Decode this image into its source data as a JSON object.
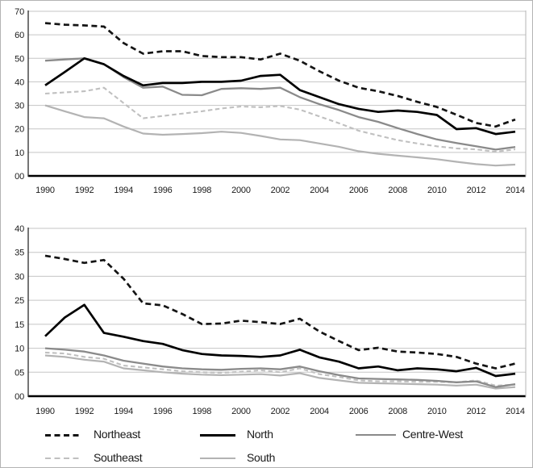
{
  "legend": {
    "entries": [
      {
        "id": "northeast",
        "label": "Northeast",
        "color": "#141414",
        "dashed": true,
        "thickness": 3,
        "row": 0,
        "col": 0
      },
      {
        "id": "north",
        "label": "North",
        "color": "#000000",
        "dashed": false,
        "thickness": 3,
        "row": 0,
        "col": 1
      },
      {
        "id": "centre-west",
        "label": "Centre-West",
        "color": "#8a8a8a",
        "dashed": false,
        "thickness": 2.5,
        "row": 0,
        "col": 2
      },
      {
        "id": "southeast",
        "label": "Southeast",
        "color": "#c0c0c0",
        "dashed": true,
        "thickness": 2.5,
        "row": 1,
        "col": 0
      },
      {
        "id": "south",
        "label": "South",
        "color": "#b3b3b3",
        "dashed": false,
        "thickness": 2.5,
        "row": 1,
        "col": 1
      }
    ]
  },
  "chart_data": [
    {
      "type": "line",
      "title": "",
      "xlabel": "",
      "ylabel": "",
      "x": [
        1990,
        1991,
        1992,
        1993,
        1994,
        1995,
        1996,
        1997,
        1998,
        1999,
        2000,
        2001,
        2002,
        2003,
        2004,
        2005,
        2006,
        2007,
        2008,
        2009,
        2010,
        2011,
        2012,
        2013,
        2014
      ],
      "xtick_labels": [
        "1990",
        "1992",
        "1994",
        "1996",
        "1998",
        "2000",
        "2002",
        "2004",
        "2006",
        "2008",
        "2010",
        "2012",
        "2014"
      ],
      "ytick_labels": [
        "00",
        "10",
        "20",
        "30",
        "40",
        "50",
        "60",
        "70"
      ],
      "ytick_values": [
        0,
        10,
        20,
        30,
        40,
        50,
        60,
        70
      ],
      "ylim": [
        0,
        70
      ],
      "grid": true,
      "series": [
        {
          "name": "Northeast",
          "color": "#141414",
          "dash": "7 4.5",
          "width": 2.7,
          "values": [
            65,
            64.3,
            64,
            63.5,
            56.5,
            52,
            53,
            53,
            51,
            50.5,
            50.5,
            49.5,
            52,
            49,
            44.5,
            40.5,
            37.5,
            36,
            34,
            31.5,
            29.3,
            26,
            22.5,
            21,
            24
          ]
        },
        {
          "name": "North",
          "color": "#000000",
          "dash": "",
          "width": 2.7,
          "values": [
            38.5,
            44.2,
            50,
            47.5,
            42.5,
            38.5,
            39.5,
            39.5,
            40,
            40,
            40.5,
            42.5,
            43,
            36.5,
            33.5,
            30.5,
            28.5,
            27.2,
            27.8,
            27.2,
            25.9,
            19.9,
            20.3,
            17.8,
            18.8
          ]
        },
        {
          "name": "Centre-West",
          "color": "#8a8a8a",
          "dash": "",
          "width": 2.3,
          "values": [
            49,
            49.5,
            50,
            47.5,
            42,
            37.5,
            38,
            34.5,
            34.3,
            37,
            37.3,
            37,
            37.5,
            33.5,
            30.5,
            28,
            25,
            23,
            20.3,
            17.8,
            15.5,
            14,
            12.6,
            11.2,
            12.3
          ]
        },
        {
          "name": "Southeast",
          "color": "#c0c0c0",
          "dash": "5.5 3.5",
          "width": 2.1,
          "values": [
            35,
            35.5,
            36,
            37.5,
            31,
            24.5,
            25.5,
            26.5,
            27.5,
            28.7,
            29.5,
            29.2,
            29.7,
            28.2,
            25.3,
            22.4,
            19.2,
            17.2,
            15.2,
            13.8,
            12.6,
            11.7,
            11.3,
            10.3,
            11.3
          ]
        },
        {
          "name": "South",
          "color": "#b3b3b3",
          "dash": "",
          "width": 2.2,
          "values": [
            30,
            27.5,
            25,
            24.5,
            21,
            18,
            17.5,
            17.8,
            18.2,
            18.8,
            18.3,
            17,
            15.5,
            15.2,
            13.8,
            12.4,
            10.5,
            9.4,
            8.6,
            7.9,
            7.1,
            6,
            5,
            4.4,
            4.8
          ]
        }
      ]
    },
    {
      "type": "line",
      "title": "",
      "xlabel": "",
      "ylabel": "",
      "x": [
        1990,
        1991,
        1992,
        1993,
        1994,
        1995,
        1996,
        1997,
        1998,
        1999,
        2000,
        2001,
        2002,
        2003,
        2004,
        2005,
        2006,
        2007,
        2008,
        2009,
        2010,
        2011,
        2012,
        2013,
        2014
      ],
      "xtick_labels": [
        "1990",
        "1992",
        "1994",
        "1996",
        "1998",
        "2000",
        "2002",
        "2004",
        "2006",
        "2008",
        "2010",
        "2012",
        "2014"
      ],
      "ytick_labels": [
        "00",
        "05",
        "10",
        "15",
        "25",
        "30",
        "35",
        "40"
      ],
      "ytick_values": [
        0,
        5,
        10,
        15,
        25,
        30,
        35,
        40
      ],
      "ylim": [
        0,
        40
      ],
      "grid": true,
      "series": [
        {
          "name": "Northeast",
          "color": "#141414",
          "dash": "7 4.5",
          "width": 2.7,
          "values": [
            34.3,
            33.6,
            32.8,
            33.4,
            29.5,
            23.7,
            22.9,
            19.3,
            15.1,
            15.3,
            16.5,
            15.9,
            15.1,
            17.3,
            13.5,
            11.5,
            9.6,
            10.1,
            9.3,
            9.1,
            8.8,
            8.2,
            6.8,
            5.8,
            6.8
          ]
        },
        {
          "name": "North",
          "color": "#000000",
          "dash": "",
          "width": 2.7,
          "values": [
            12.5,
            17.8,
            23.1,
            13.2,
            12.4,
            11.5,
            10.9,
            9.6,
            8.8,
            8.5,
            8.4,
            8.2,
            8.5,
            9.7,
            8.1,
            7.2,
            5.8,
            6.2,
            5.4,
            5.8,
            5.6,
            5.2,
            5.9,
            4.2,
            4.7
          ]
        },
        {
          "name": "Centre-West",
          "color": "#8a8a8a",
          "dash": "",
          "width": 2.3,
          "values": [
            10,
            9.7,
            9.3,
            8.5,
            7.4,
            6.8,
            6.2,
            5.8,
            5.6,
            5.5,
            5.7,
            5.8,
            5.6,
            6.2,
            5.2,
            4.4,
            3.7,
            3.6,
            3.5,
            3.4,
            3.2,
            2.9,
            3.1,
            1.9,
            2.5
          ]
        },
        {
          "name": "Southeast",
          "color": "#c0c0c0",
          "dash": "5.5 3.5",
          "width": 2.1,
          "values": [
            9.1,
            8.9,
            8.2,
            7.8,
            6.4,
            6,
            5.6,
            5.2,
            5,
            4.9,
            5.1,
            5.4,
            5,
            5.8,
            4.6,
            4,
            3.3,
            3.1,
            3.1,
            3,
            3,
            2.9,
            3.3,
            2.2,
            2.4
          ]
        },
        {
          "name": "South",
          "color": "#b3b3b3",
          "dash": "",
          "width": 2.2,
          "values": [
            8.5,
            8.2,
            7.6,
            7.2,
            5.8,
            5.4,
            5,
            4.7,
            4.5,
            4.4,
            4.5,
            4.6,
            4.3,
            4.8,
            3.8,
            3.3,
            2.8,
            2.7,
            2.6,
            2.5,
            2.4,
            2.2,
            2.4,
            1.6,
            1.9
          ]
        }
      ]
    }
  ]
}
